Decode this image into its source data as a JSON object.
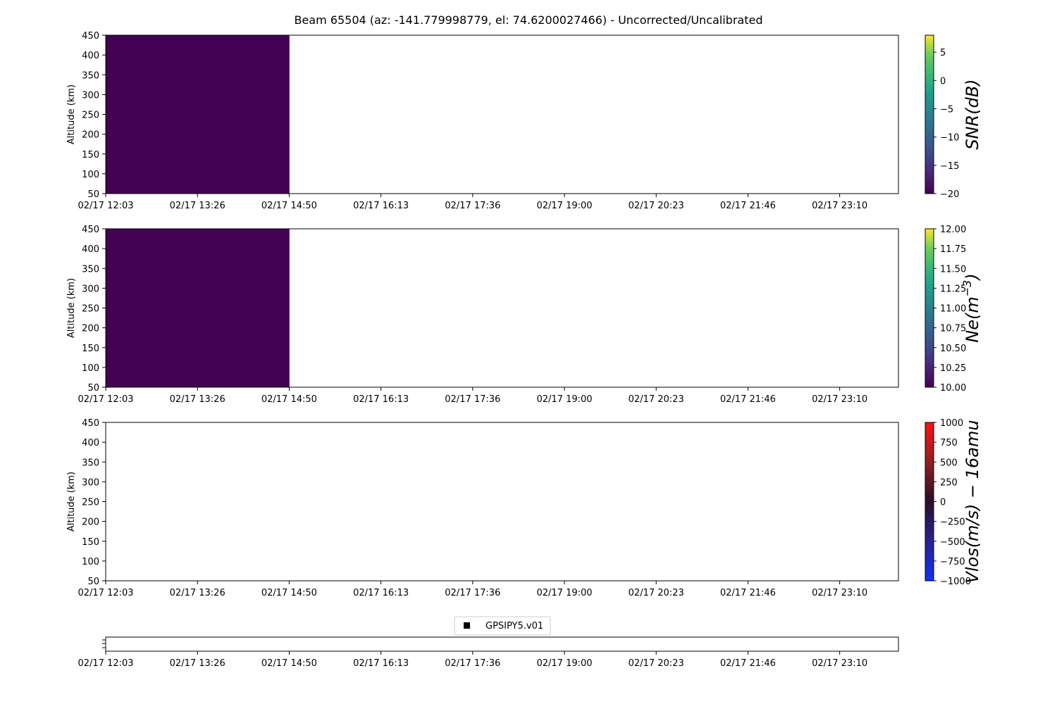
{
  "title": "Beam 65504 (az: -141.779998779, el: 74.6200027466) - Uncorrected/Uncalibrated",
  "x_tick_labels": [
    "02/17 12:03",
    "02/17 13:26",
    "02/17 14:50",
    "02/17 16:13",
    "02/17 17:36",
    "02/17 19:00",
    "02/17 20:23",
    "02/17 21:46",
    "02/17 23:10"
  ],
  "chart_data": [
    {
      "type": "heatmap",
      "ylabel": "Altitude (km)",
      "ylim": [
        50,
        450
      ],
      "yticks": [
        "50",
        "100",
        "150",
        "200",
        "250",
        "300",
        "350",
        "400",
        "450"
      ],
      "xlim": [
        "02/17 12:03",
        "02/17 00:30+1"
      ],
      "filled_until": "02/17 14:50",
      "fill_color": "#440154",
      "colorbar": {
        "label": "SNR(dB)",
        "label_parts": [
          "SNR(dB)"
        ],
        "range": [
          -20,
          8
        ],
        "ticks": [
          "−20",
          "−15",
          "−10",
          "−5",
          "0",
          "5"
        ],
        "tick_values": [
          -20,
          -15,
          -10,
          -5,
          0,
          5
        ],
        "colormap": "viridis"
      }
    },
    {
      "type": "heatmap",
      "ylabel": "Altitude (km)",
      "ylim": [
        50,
        450
      ],
      "yticks": [
        "50",
        "100",
        "150",
        "200",
        "250",
        "300",
        "350",
        "400",
        "450"
      ],
      "filled_until": "02/17 14:50",
      "fill_color": "#440154",
      "colorbar": {
        "label": "Ne(m−3)",
        "label_parts": [
          "Ne(m",
          "−3",
          ")"
        ],
        "range": [
          10,
          12
        ],
        "ticks": [
          "10.00",
          "10.25",
          "10.50",
          "10.75",
          "11.00",
          "11.25",
          "11.50",
          "11.75",
          "12.00"
        ],
        "tick_values": [
          10,
          10.25,
          10.5,
          10.75,
          11,
          11.25,
          11.5,
          11.75,
          12
        ],
        "colormap": "viridis"
      }
    },
    {
      "type": "heatmap",
      "ylabel": "Altitude (km)",
      "ylim": [
        50,
        450
      ],
      "yticks": [
        "50",
        "100",
        "150",
        "200",
        "250",
        "300",
        "350",
        "400",
        "450"
      ],
      "filled_until": null,
      "colorbar": {
        "label": "Vlos(m/s) − 16amu",
        "label_parts": [
          "Vlos(m/s) − 16amu"
        ],
        "range": [
          -1000,
          1000
        ],
        "ticks": [
          "−1000",
          "−750",
          "−500",
          "−250",
          "0",
          "250",
          "500",
          "750",
          "1000"
        ],
        "tick_values": [
          -1000,
          -750,
          -500,
          -250,
          0,
          250,
          500,
          750,
          1000
        ],
        "colormap": "bwr-dark"
      }
    },
    {
      "type": "scatter",
      "legend": {
        "label": "GPSIPY5.v01",
        "placement": "top-center",
        "marker_color": "#000000"
      },
      "points": []
    }
  ]
}
